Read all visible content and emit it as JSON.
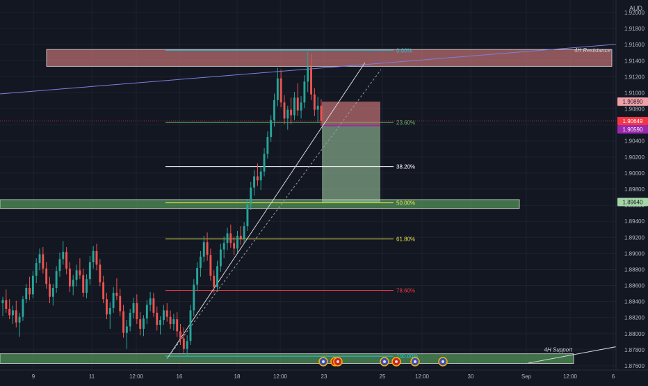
{
  "chart_data": {
    "type": "candlestick",
    "currency_label": "AUD",
    "y_range": [
      1.875,
      1.922
    ],
    "y_ticks": [
      "1.92000",
      "1.91800",
      "1.91600",
      "1.91400",
      "1.91200",
      "1.91000",
      "1.90800",
      "1.90600",
      "1.90400",
      "1.90200",
      "1.90000",
      "1.89800",
      "1.89600",
      "1.89400",
      "1.89200",
      "1.89000",
      "1.88800",
      "1.88600",
      "1.88400",
      "1.88200",
      "1.88000",
      "1.87800",
      "1.87600"
    ],
    "x_labels": [
      "9",
      "11",
      "12:00",
      "16",
      "18",
      "12:00",
      "23",
      "25",
      "12:00",
      "30",
      "Sep",
      "12:00",
      "6"
    ],
    "price_badges": [
      {
        "label": "1.90890",
        "value": 1.9089,
        "color": "#f0a0a8",
        "text_color": "#131722"
      },
      {
        "label": "1.90649",
        "value": 1.90649,
        "color": "#f23645",
        "text_color": "#ffffff"
      },
      {
        "label": "1.90590",
        "value": 1.9059,
        "color": "#9c27b0",
        "text_color": "#ffffff"
      },
      {
        "label": "1.89640",
        "value": 1.8964,
        "color": "#a5d6a7",
        "text_color": "#131722"
      }
    ],
    "fib_levels": [
      {
        "label": "0.00%",
        "value": 1.9153,
        "color": "#26c6da"
      },
      {
        "label": "23.60%",
        "value": 1.9063,
        "color": "#66bb6a"
      },
      {
        "label": "38.20%",
        "value": 1.9008,
        "color": "#ffffff"
      },
      {
        "label": "50.00%",
        "value": 1.8963,
        "color": "#e6e64c"
      },
      {
        "label": "61.80%",
        "value": 1.8918,
        "color": "#e6e64c"
      },
      {
        "label": "78.60%",
        "value": 1.8854,
        "color": "#f23645"
      },
      {
        "label": "100.00%",
        "value": 1.8772,
        "color": "#26c6da"
      }
    ],
    "zones": [
      {
        "label": "4H Resistance",
        "top": 1.9154,
        "bottom": 1.9133,
        "color": "#f28b8b"
      },
      {
        "label": "",
        "top": 1.8967,
        "bottom": 1.8956,
        "color": "#66bb6a"
      },
      {
        "label": "4H Support",
        "top": 1.8775,
        "bottom": 1.8763,
        "color": "#66bb6a"
      }
    ],
    "position": {
      "entry": 1.9059,
      "stop": 1.9089,
      "target": 1.8964
    },
    "candles": [
      {
        "o": 1.8838,
        "h": 1.8846,
        "l": 1.8822,
        "c": 1.8842
      },
      {
        "o": 1.8842,
        "h": 1.8855,
        "l": 1.8826,
        "c": 1.8831
      },
      {
        "o": 1.8831,
        "h": 1.8843,
        "l": 1.8818,
        "c": 1.8823
      },
      {
        "o": 1.8823,
        "h": 1.8835,
        "l": 1.8812,
        "c": 1.8829
      },
      {
        "o": 1.8829,
        "h": 1.8841,
        "l": 1.8808,
        "c": 1.8814
      },
      {
        "o": 1.8814,
        "h": 1.8826,
        "l": 1.8796,
        "c": 1.8821
      },
      {
        "o": 1.8821,
        "h": 1.8847,
        "l": 1.8816,
        "c": 1.8843
      },
      {
        "o": 1.8843,
        "h": 1.8862,
        "l": 1.8838,
        "c": 1.8857
      },
      {
        "o": 1.8857,
        "h": 1.8871,
        "l": 1.8842,
        "c": 1.8849
      },
      {
        "o": 1.8849,
        "h": 1.8878,
        "l": 1.8844,
        "c": 1.8872
      },
      {
        "o": 1.8872,
        "h": 1.8894,
        "l": 1.8863,
        "c": 1.8888
      },
      {
        "o": 1.8888,
        "h": 1.8906,
        "l": 1.8879,
        "c": 1.8899
      },
      {
        "o": 1.8899,
        "h": 1.8908,
        "l": 1.8875,
        "c": 1.8881
      },
      {
        "o": 1.8881,
        "h": 1.8889,
        "l": 1.8856,
        "c": 1.8862
      },
      {
        "o": 1.8862,
        "h": 1.8871,
        "l": 1.8838,
        "c": 1.8846
      },
      {
        "o": 1.8846,
        "h": 1.8862,
        "l": 1.8835,
        "c": 1.8857
      },
      {
        "o": 1.8857,
        "h": 1.8884,
        "l": 1.8851,
        "c": 1.8878
      },
      {
        "o": 1.8878,
        "h": 1.8901,
        "l": 1.8871,
        "c": 1.8893
      },
      {
        "o": 1.8893,
        "h": 1.8915,
        "l": 1.8886,
        "c": 1.8902
      },
      {
        "o": 1.8902,
        "h": 1.8908,
        "l": 1.8874,
        "c": 1.8881
      },
      {
        "o": 1.8881,
        "h": 1.8889,
        "l": 1.8852,
        "c": 1.8859
      },
      {
        "o": 1.8859,
        "h": 1.8873,
        "l": 1.8848,
        "c": 1.8867
      },
      {
        "o": 1.8867,
        "h": 1.8886,
        "l": 1.8859,
        "c": 1.8879
      },
      {
        "o": 1.8879,
        "h": 1.8894,
        "l": 1.8868,
        "c": 1.8873
      },
      {
        "o": 1.8873,
        "h": 1.8881,
        "l": 1.8846,
        "c": 1.8851
      },
      {
        "o": 1.8851,
        "h": 1.8874,
        "l": 1.8844,
        "c": 1.8868
      },
      {
        "o": 1.8868,
        "h": 1.8897,
        "l": 1.8861,
        "c": 1.8889
      },
      {
        "o": 1.8889,
        "h": 1.8909,
        "l": 1.8881,
        "c": 1.8903
      },
      {
        "o": 1.8903,
        "h": 1.8912,
        "l": 1.8879,
        "c": 1.8886
      },
      {
        "o": 1.8886,
        "h": 1.8893,
        "l": 1.8859,
        "c": 1.8864
      },
      {
        "o": 1.8864,
        "h": 1.8872,
        "l": 1.8838,
        "c": 1.8843
      },
      {
        "o": 1.8843,
        "h": 1.8851,
        "l": 1.8818,
        "c": 1.8824
      },
      {
        "o": 1.8824,
        "h": 1.8839,
        "l": 1.8806,
        "c": 1.8832
      },
      {
        "o": 1.8832,
        "h": 1.8858,
        "l": 1.8826,
        "c": 1.8851
      },
      {
        "o": 1.8851,
        "h": 1.8869,
        "l": 1.8842,
        "c": 1.8847
      },
      {
        "o": 1.8847,
        "h": 1.8856,
        "l": 1.8822,
        "c": 1.8828
      },
      {
        "o": 1.8828,
        "h": 1.8836,
        "l": 1.8795,
        "c": 1.8801
      },
      {
        "o": 1.8801,
        "h": 1.8817,
        "l": 1.8781,
        "c": 1.8809
      },
      {
        "o": 1.8809,
        "h": 1.8831,
        "l": 1.8803,
        "c": 1.8826
      },
      {
        "o": 1.8826,
        "h": 1.8845,
        "l": 1.8819,
        "c": 1.8838
      },
      {
        "o": 1.8838,
        "h": 1.8849,
        "l": 1.8812,
        "c": 1.8818
      },
      {
        "o": 1.8818,
        "h": 1.8827,
        "l": 1.8798,
        "c": 1.8806
      },
      {
        "o": 1.8806,
        "h": 1.8823,
        "l": 1.8797,
        "c": 1.8819
      },
      {
        "o": 1.8819,
        "h": 1.8842,
        "l": 1.8812,
        "c": 1.8836
      },
      {
        "o": 1.8836,
        "h": 1.8852,
        "l": 1.8828,
        "c": 1.8844
      },
      {
        "o": 1.8844,
        "h": 1.8851,
        "l": 1.8821,
        "c": 1.8826
      },
      {
        "o": 1.8826,
        "h": 1.8834,
        "l": 1.8804,
        "c": 1.8811
      },
      {
        "o": 1.8811,
        "h": 1.8822,
        "l": 1.8799,
        "c": 1.8817
      },
      {
        "o": 1.8817,
        "h": 1.8836,
        "l": 1.8811,
        "c": 1.8829
      },
      {
        "o": 1.8829,
        "h": 1.8838,
        "l": 1.8815,
        "c": 1.8821
      },
      {
        "o": 1.8821,
        "h": 1.8829,
        "l": 1.8806,
        "c": 1.8812
      },
      {
        "o": 1.8812,
        "h": 1.8825,
        "l": 1.8804,
        "c": 1.8818
      },
      {
        "o": 1.8818,
        "h": 1.8827,
        "l": 1.8796,
        "c": 1.8803
      },
      {
        "o": 1.8803,
        "h": 1.8812,
        "l": 1.8786,
        "c": 1.8794
      },
      {
        "o": 1.8794,
        "h": 1.8808,
        "l": 1.8776,
        "c": 1.8781
      },
      {
        "o": 1.8781,
        "h": 1.8798,
        "l": 1.8772,
        "c": 1.8791
      },
      {
        "o": 1.8791,
        "h": 1.8836,
        "l": 1.8786,
        "c": 1.8829
      },
      {
        "o": 1.8829,
        "h": 1.8868,
        "l": 1.8822,
        "c": 1.8861
      },
      {
        "o": 1.8861,
        "h": 1.8889,
        "l": 1.8853,
        "c": 1.8882
      },
      {
        "o": 1.8882,
        "h": 1.8903,
        "l": 1.8871,
        "c": 1.8896
      },
      {
        "o": 1.8896,
        "h": 1.8922,
        "l": 1.8889,
        "c": 1.8914
      },
      {
        "o": 1.8914,
        "h": 1.8926,
        "l": 1.8891,
        "c": 1.8898
      },
      {
        "o": 1.8898,
        "h": 1.8906,
        "l": 1.8866,
        "c": 1.8872
      },
      {
        "o": 1.8872,
        "h": 1.8879,
        "l": 1.8851,
        "c": 1.8858
      },
      {
        "o": 1.8858,
        "h": 1.8891,
        "l": 1.8852,
        "c": 1.8884
      },
      {
        "o": 1.8884,
        "h": 1.8912,
        "l": 1.8877,
        "c": 1.8905
      },
      {
        "o": 1.8905,
        "h": 1.8921,
        "l": 1.8894,
        "c": 1.8913
      },
      {
        "o": 1.8913,
        "h": 1.8932,
        "l": 1.8904,
        "c": 1.8925
      },
      {
        "o": 1.8925,
        "h": 1.8936,
        "l": 1.8907,
        "c": 1.8913
      },
      {
        "o": 1.8913,
        "h": 1.8921,
        "l": 1.8898,
        "c": 1.8906
      },
      {
        "o": 1.8906,
        "h": 1.8928,
        "l": 1.8901,
        "c": 1.8922
      },
      {
        "o": 1.8922,
        "h": 1.8934,
        "l": 1.8911,
        "c": 1.8918
      },
      {
        "o": 1.8918,
        "h": 1.8939,
        "l": 1.8913,
        "c": 1.8934
      },
      {
        "o": 1.8934,
        "h": 1.8968,
        "l": 1.8928,
        "c": 1.8961
      },
      {
        "o": 1.8961,
        "h": 1.8989,
        "l": 1.8954,
        "c": 1.8982
      },
      {
        "o": 1.8982,
        "h": 1.9004,
        "l": 1.8972,
        "c": 1.8996
      },
      {
        "o": 1.8996,
        "h": 1.9012,
        "l": 1.8984,
        "c": 1.8991
      },
      {
        "o": 1.8991,
        "h": 1.9008,
        "l": 1.8979,
        "c": 1.9002
      },
      {
        "o": 1.9002,
        "h": 1.9031,
        "l": 1.8996,
        "c": 1.9024
      },
      {
        "o": 1.9024,
        "h": 1.9052,
        "l": 1.9018,
        "c": 1.9045
      },
      {
        "o": 1.9045,
        "h": 1.9072,
        "l": 1.9039,
        "c": 1.9066
      },
      {
        "o": 1.9066,
        "h": 1.9099,
        "l": 1.9058,
        "c": 1.9091
      },
      {
        "o": 1.9091,
        "h": 1.9131,
        "l": 1.9083,
        "c": 1.9118
      },
      {
        "o": 1.9118,
        "h": 1.9129,
        "l": 1.9082,
        "c": 1.9088
      },
      {
        "o": 1.9088,
        "h": 1.9097,
        "l": 1.9061,
        "c": 1.9068
      },
      {
        "o": 1.9068,
        "h": 1.9084,
        "l": 1.9054,
        "c": 1.9079
      },
      {
        "o": 1.9079,
        "h": 1.9094,
        "l": 1.9061,
        "c": 1.9072
      },
      {
        "o": 1.9072,
        "h": 1.9101,
        "l": 1.9066,
        "c": 1.9094
      },
      {
        "o": 1.9094,
        "h": 1.9112,
        "l": 1.9071,
        "c": 1.9078
      },
      {
        "o": 1.9078,
        "h": 1.9096,
        "l": 1.9068,
        "c": 1.9088
      },
      {
        "o": 1.9088,
        "h": 1.9122,
        "l": 1.9081,
        "c": 1.9114
      },
      {
        "o": 1.9114,
        "h": 1.9151,
        "l": 1.9101,
        "c": 1.9132
      },
      {
        "o": 1.9132,
        "h": 1.9148,
        "l": 1.9091,
        "c": 1.9098
      },
      {
        "o": 1.9098,
        "h": 1.9106,
        "l": 1.9071,
        "c": 1.9079
      },
      {
        "o": 1.9079,
        "h": 1.9095,
        "l": 1.9063,
        "c": 1.9084
      },
      {
        "o": 1.9084,
        "h": 1.9092,
        "l": 1.9059,
        "c": 1.9065
      }
    ]
  }
}
